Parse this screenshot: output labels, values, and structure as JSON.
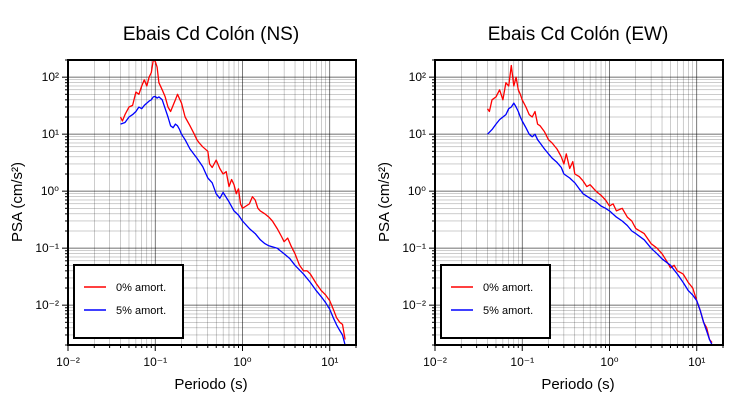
{
  "chart_data": [
    {
      "type": "line",
      "title": "Ebais Cd Colón (NS)",
      "xlabel": "Periodo (s)",
      "ylabel": "PSA (cm/s²)",
      "xscale": "log",
      "yscale": "log",
      "xlim": [
        0.01,
        20
      ],
      "ylim": [
        0.002,
        200
      ],
      "grid": true,
      "legend_position": "bottom-left",
      "x_tick_labels": [
        "10⁻²",
        "10⁻¹",
        "10⁰",
        "10¹"
      ],
      "y_tick_labels": [
        "10⁻²",
        "10⁻¹",
        "10⁰",
        "10¹",
        "10²"
      ],
      "series": [
        {
          "name": "0% amort.",
          "color": "#ff0000",
          "points": [
            [
              0.04,
              20
            ],
            [
              0.042,
              17
            ],
            [
              0.045,
              22
            ],
            [
              0.05,
              30
            ],
            [
              0.055,
              32
            ],
            [
              0.06,
              55
            ],
            [
              0.065,
              50
            ],
            [
              0.07,
              70
            ],
            [
              0.075,
              90
            ],
            [
              0.08,
              70
            ],
            [
              0.085,
              100
            ],
            [
              0.09,
              120
            ],
            [
              0.095,
              200
            ],
            [
              0.1,
              190
            ],
            [
              0.105,
              150
            ],
            [
              0.11,
              80
            ],
            [
              0.12,
              60
            ],
            [
              0.13,
              45
            ],
            [
              0.14,
              30
            ],
            [
              0.15,
              25
            ],
            [
              0.16,
              32
            ],
            [
              0.17,
              40
            ],
            [
              0.18,
              50
            ],
            [
              0.2,
              35
            ],
            [
              0.22,
              20
            ],
            [
              0.25,
              14
            ],
            [
              0.28,
              10
            ],
            [
              0.3,
              8
            ],
            [
              0.32,
              7
            ],
            [
              0.35,
              6
            ],
            [
              0.4,
              5
            ],
            [
              0.42,
              3
            ],
            [
              0.45,
              2.6
            ],
            [
              0.5,
              3.5
            ],
            [
              0.55,
              2.5
            ],
            [
              0.6,
              2
            ],
            [
              0.65,
              2.2
            ],
            [
              0.7,
              1.2
            ],
            [
              0.75,
              1.6
            ],
            [
              0.8,
              1.3
            ],
            [
              0.85,
              0.9
            ],
            [
              0.9,
              1.1
            ],
            [
              0.95,
              0.6
            ],
            [
              1.0,
              0.5
            ],
            [
              1.1,
              0.55
            ],
            [
              1.2,
              0.6
            ],
            [
              1.3,
              0.8
            ],
            [
              1.4,
              0.7
            ],
            [
              1.5,
              0.5
            ],
            [
              1.6,
              0.45
            ],
            [
              1.8,
              0.4
            ],
            [
              2.0,
              0.35
            ],
            [
              2.2,
              0.3
            ],
            [
              2.5,
              0.22
            ],
            [
              2.8,
              0.16
            ],
            [
              3.0,
              0.13
            ],
            [
              3.3,
              0.15
            ],
            [
              3.6,
              0.11
            ],
            [
              4.0,
              0.08
            ],
            [
              4.5,
              0.05
            ],
            [
              5.0,
              0.04
            ],
            [
              5.5,
              0.04
            ],
            [
              6.0,
              0.035
            ],
            [
              7.0,
              0.024
            ],
            [
              8.0,
              0.018
            ],
            [
              9.0,
              0.015
            ],
            [
              10.0,
              0.012
            ],
            [
              11.0,
              0.0085
            ],
            [
              12.0,
              0.006
            ],
            [
              13.0,
              0.005
            ],
            [
              14.0,
              0.0046
            ],
            [
              15.0,
              0.0025
            ]
          ]
        },
        {
          "name": "5% amort.",
          "color": "#0000ff",
          "points": [
            [
              0.04,
              15
            ],
            [
              0.045,
              16
            ],
            [
              0.05,
              20
            ],
            [
              0.055,
              22
            ],
            [
              0.06,
              25
            ],
            [
              0.065,
              30
            ],
            [
              0.07,
              28
            ],
            [
              0.075,
              32
            ],
            [
              0.08,
              35
            ],
            [
              0.085,
              38
            ],
            [
              0.09,
              40
            ],
            [
              0.095,
              45
            ],
            [
              0.1,
              46
            ],
            [
              0.105,
              43
            ],
            [
              0.11,
              45
            ],
            [
              0.12,
              40
            ],
            [
              0.13,
              28
            ],
            [
              0.14,
              20
            ],
            [
              0.15,
              14
            ],
            [
              0.16,
              13
            ],
            [
              0.17,
              15
            ],
            [
              0.18,
              14
            ],
            [
              0.19,
              12
            ],
            [
              0.2,
              10
            ],
            [
              0.22,
              8
            ],
            [
              0.25,
              5.5
            ],
            [
              0.3,
              3.8
            ],
            [
              0.35,
              2.7
            ],
            [
              0.4,
              1.7
            ],
            [
              0.45,
              1.4
            ],
            [
              0.5,
              0.9
            ],
            [
              0.55,
              0.75
            ],
            [
              0.6,
              0.95
            ],
            [
              0.7,
              0.65
            ],
            [
              0.8,
              0.45
            ],
            [
              0.9,
              0.38
            ],
            [
              1.0,
              0.3
            ],
            [
              1.2,
              0.22
            ],
            [
              1.4,
              0.18
            ],
            [
              1.6,
              0.14
            ],
            [
              1.8,
              0.12
            ],
            [
              2.0,
              0.11
            ],
            [
              2.5,
              0.1
            ],
            [
              3.0,
              0.08
            ],
            [
              3.5,
              0.065
            ],
            [
              4.0,
              0.05
            ],
            [
              5.0,
              0.035
            ],
            [
              6.0,
              0.025
            ],
            [
              7.0,
              0.018
            ],
            [
              8.0,
              0.014
            ],
            [
              9.0,
              0.011
            ],
            [
              10.0,
              0.0085
            ],
            [
              11.0,
              0.006
            ],
            [
              12.0,
              0.0045
            ],
            [
              13.0,
              0.0036
            ],
            [
              14.0,
              0.003
            ],
            [
              15.0,
              0.002
            ]
          ]
        }
      ]
    },
    {
      "type": "line",
      "title": "Ebais Cd Colón (EW)",
      "xlabel": "Periodo (s)",
      "ylabel": "PSA (cm/s²)",
      "xscale": "log",
      "yscale": "log",
      "xlim": [
        0.01,
        20
      ],
      "ylim": [
        0.002,
        200
      ],
      "grid": true,
      "legend_position": "bottom-left",
      "x_tick_labels": [
        "10⁻²",
        "10⁻¹",
        "10⁰",
        "10¹"
      ],
      "y_tick_labels": [
        "10⁻²",
        "10⁻¹",
        "10⁰",
        "10¹",
        "10²"
      ],
      "series": [
        {
          "name": "0% amort.",
          "color": "#ff0000",
          "points": [
            [
              0.04,
              28
            ],
            [
              0.042,
              25
            ],
            [
              0.045,
              40
            ],
            [
              0.05,
              45
            ],
            [
              0.055,
              60
            ],
            [
              0.06,
              40
            ],
            [
              0.065,
              80
            ],
            [
              0.07,
              70
            ],
            [
              0.075,
              160
            ],
            [
              0.08,
              70
            ],
            [
              0.085,
              100
            ],
            [
              0.09,
              60
            ],
            [
              0.095,
              50
            ],
            [
              0.1,
              40
            ],
            [
              0.11,
              30
            ],
            [
              0.12,
              22
            ],
            [
              0.13,
              20
            ],
            [
              0.14,
              25
            ],
            [
              0.15,
              15
            ],
            [
              0.16,
              14
            ],
            [
              0.18,
              11
            ],
            [
              0.2,
              8
            ],
            [
              0.22,
              7
            ],
            [
              0.25,
              5.5
            ],
            [
              0.28,
              4
            ],
            [
              0.3,
              3
            ],
            [
              0.32,
              4.5
            ],
            [
              0.35,
              2.5
            ],
            [
              0.38,
              3.3
            ],
            [
              0.4,
              2
            ],
            [
              0.45,
              1.8
            ],
            [
              0.5,
              1.5
            ],
            [
              0.55,
              1.2
            ],
            [
              0.6,
              1.3
            ],
            [
              0.7,
              1.0
            ],
            [
              0.8,
              0.85
            ],
            [
              0.9,
              0.7
            ],
            [
              1.0,
              0.55
            ],
            [
              1.1,
              0.6
            ],
            [
              1.2,
              0.45
            ],
            [
              1.4,
              0.5
            ],
            [
              1.6,
              0.35
            ],
            [
              1.8,
              0.3
            ],
            [
              2.0,
              0.22
            ],
            [
              2.5,
              0.18
            ],
            [
              3.0,
              0.12
            ],
            [
              3.5,
              0.1
            ],
            [
              4.0,
              0.08
            ],
            [
              4.5,
              0.06
            ],
            [
              5.0,
              0.045
            ],
            [
              5.5,
              0.05
            ],
            [
              6.0,
              0.04
            ],
            [
              7.0,
              0.035
            ],
            [
              8.0,
              0.025
            ],
            [
              9.0,
              0.02
            ],
            [
              10.0,
              0.012
            ],
            [
              11.0,
              0.008
            ],
            [
              12.0,
              0.005
            ],
            [
              13.0,
              0.004
            ],
            [
              14.0,
              0.0025
            ],
            [
              15.0,
              0.0022
            ]
          ]
        },
        {
          "name": "5% amort.",
          "color": "#0000ff",
          "points": [
            [
              0.04,
              10
            ],
            [
              0.045,
              12
            ],
            [
              0.05,
              15
            ],
            [
              0.055,
              18
            ],
            [
              0.06,
              20
            ],
            [
              0.065,
              22
            ],
            [
              0.07,
              28
            ],
            [
              0.075,
              30
            ],
            [
              0.08,
              35
            ],
            [
              0.085,
              30
            ],
            [
              0.09,
              25
            ],
            [
              0.095,
              20
            ],
            [
              0.1,
              17
            ],
            [
              0.11,
              13
            ],
            [
              0.12,
              10
            ],
            [
              0.13,
              9
            ],
            [
              0.14,
              10
            ],
            [
              0.15,
              8
            ],
            [
              0.16,
              7
            ],
            [
              0.18,
              5.5
            ],
            [
              0.2,
              4.5
            ],
            [
              0.22,
              3.8
            ],
            [
              0.25,
              3.2
            ],
            [
              0.28,
              2.6
            ],
            [
              0.3,
              2
            ],
            [
              0.35,
              1.7
            ],
            [
              0.4,
              1.4
            ],
            [
              0.45,
              1.1
            ],
            [
              0.5,
              0.9
            ],
            [
              0.6,
              0.75
            ],
            [
              0.7,
              0.65
            ],
            [
              0.8,
              0.55
            ],
            [
              0.9,
              0.5
            ],
            [
              1.0,
              0.45
            ],
            [
              1.2,
              0.35
            ],
            [
              1.4,
              0.3
            ],
            [
              1.6,
              0.25
            ],
            [
              1.8,
              0.2
            ],
            [
              2.0,
              0.18
            ],
            [
              2.5,
              0.14
            ],
            [
              3.0,
              0.1
            ],
            [
              3.5,
              0.08
            ],
            [
              4.0,
              0.065
            ],
            [
              5.0,
              0.05
            ],
            [
              6.0,
              0.035
            ],
            [
              7.0,
              0.025
            ],
            [
              8.0,
              0.018
            ],
            [
              9.0,
              0.015
            ],
            [
              10.0,
              0.012
            ],
            [
              11.0,
              0.008
            ],
            [
              12.0,
              0.005
            ],
            [
              13.0,
              0.0035
            ],
            [
              14.0,
              0.0025
            ],
            [
              15.0,
              0.002
            ]
          ]
        }
      ]
    }
  ]
}
